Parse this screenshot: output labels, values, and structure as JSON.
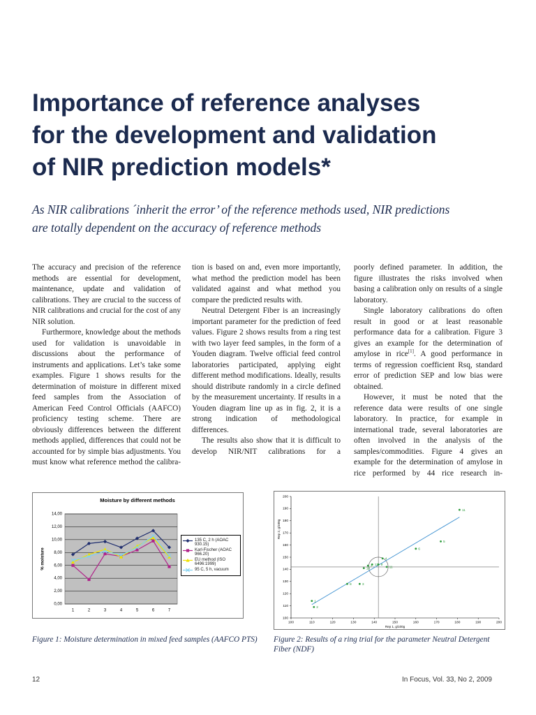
{
  "title_lines": [
    "Importance of reference analyses",
    "for the development and validation",
    "of NIR prediction models*"
  ],
  "subtitle_lines": [
    "As NIR calibrations ´inherit the error’ of the reference methods used, NIR predictions",
    "are totally dependent on the accuracy of reference methods"
  ],
  "columns": [
    [
      "The accuracy and precision of the reference methods are essential for development, maintenance, update and validation of calibrations. They are crucial to the success of NIR calibrations and crucial for the cost of any NIR solution.",
      "Furthermore, knowledge about the methods used for validation is unavoidable in discussions about the performance of instruments and applications. Let’s take some examples. Figure 1 shows results for the determination of moisture in different mixed feed samples from the Association of American Feed Control Officials (AAFCO) proficiency testing scheme. There are obviously differences between the different methods applied, differences that could not be accounted for by simple bias adjustments. You must know what reference method the calibra-"
    ],
    [
      "tion is based on and, even more importantly, what method the prediction model has been validated against and what method you compare the predicted results with.",
      "Neutral Detergent Fiber is an increasingly important parameter for the prediction of feed values. Figure 2 shows results from a ring test with two layer feed samples, in the form of a Youden diagram. Twelve official feed control laboratories participated, applying eight different method modifications. Ideally, results should distribute randomly in a circle defined by the measurement uncertainty. If results in a Youden diagram line up as in fig. 2, it is a strong indication of methodological differences.",
      "The results also show that it is difficult to develop NIR/NIT calibrations for a"
    ],
    [
      "poorly defined parameter. In addition, the figure illustrates the risks involved when basing a calibration only on results of a single laboratory.",
      {
        "text": "Single laboratory calibrations do often result in good or at least reasonable performance data for a calibration. Figure 3 gives an example for the determination of amylose in rice",
        "sup": "[1]",
        "rest": ". A good performance in terms of regression coefficient Rsq, standard error of prediction SEP and low bias were obtained."
      },
      "However, it must be noted that the reference data were results of one single laboratory. In practice, for example in international trade, several laboratories are often involved in the analysis of the samples/commodities. Figure 4 gives an example for the determination of amylose in rice performed by 44 rice research in-"
    ]
  ],
  "chart_data": [
    {
      "type": "line",
      "title": "Moisture by different methods",
      "y_label": "% moisture",
      "categories": [
        "1",
        "2",
        "3",
        "4",
        "5",
        "6",
        "7"
      ],
      "ylim": [
        0,
        14
      ],
      "yticks": [
        {
          "value": 0,
          "label": "0,00"
        },
        {
          "value": 2,
          "label": "2,00"
        },
        {
          "value": 4,
          "label": "4,00"
        },
        {
          "value": 6,
          "label": "6,00"
        },
        {
          "value": 8,
          "label": "8,00"
        },
        {
          "value": 10,
          "label": "10,00"
        },
        {
          "value": 12,
          "label": "12,00"
        },
        {
          "value": 14,
          "label": "14,00"
        }
      ],
      "grid": true,
      "series": [
        {
          "name": "135 C, 2 h (AOAC 930.15)",
          "color": "#1f2d6e",
          "marker": "diamond",
          "values": [
            7.7,
            9.4,
            9.7,
            8.8,
            10.2,
            11.4,
            8.8
          ]
        },
        {
          "name": "Karl-Fischer (AOAC 966.20)",
          "color": "#b0238a",
          "marker": "square",
          "values": [
            6.0,
            3.8,
            7.8,
            7.4,
            8.4,
            9.8,
            5.8
          ]
        },
        {
          "name": "EU method (ISO 6496:1999)",
          "color": "#f0e000",
          "marker": "triangle",
          "values": [
            6.5,
            7.7,
            8.5,
            7.3,
            9.0,
            10.3,
            7.3
          ]
        },
        {
          "name": "95 C, 5 h, vacuum",
          "color": "#7fd0f0",
          "marker": "x",
          "values": [
            6.8,
            7.4,
            8.2,
            7.6,
            8.8,
            10.6,
            7.5
          ]
        }
      ],
      "caption": "Figure 1: Moisture determination in mixed feed samples (AAFCO PTS)"
    },
    {
      "type": "scatter",
      "x_label": "Rep 1, g/100g",
      "y_label": "Rep 2, g/100g",
      "xlim": [
        100,
        200
      ],
      "ylim": [
        100,
        200
      ],
      "xticks": [
        100,
        110,
        120,
        130,
        140,
        150,
        160,
        170,
        180,
        190,
        200
      ],
      "yticks": [
        100,
        110,
        120,
        130,
        140,
        150,
        160,
        170,
        180,
        190,
        200
      ],
      "color": "#2a9a3a",
      "x": [
        110,
        111,
        127,
        133,
        135,
        137,
        139,
        142,
        144,
        146,
        160,
        172,
        181
      ],
      "y": [
        114,
        109,
        128,
        128,
        141,
        143,
        144,
        144,
        149,
        142,
        157,
        163,
        189
      ],
      "labels": [
        "1",
        "2",
        "8",
        "3",
        "10",
        "7",
        "12",
        "9",
        "4",
        "11",
        "6",
        "5",
        "11"
      ],
      "fit_line": {
        "color": "#3a8fd0",
        "x": [
          110,
          181
        ],
        "y": [
          111,
          183
        ]
      },
      "reference_lines": {
        "x": 142,
        "y": 142
      },
      "caption": "Figure 2: Results of a ring trial for the parameter Neutral Detergent Fiber (NDF)"
    }
  ],
  "footer": {
    "page": "12",
    "publication": "In Focus, Vol. 33, No 2, 2009"
  }
}
